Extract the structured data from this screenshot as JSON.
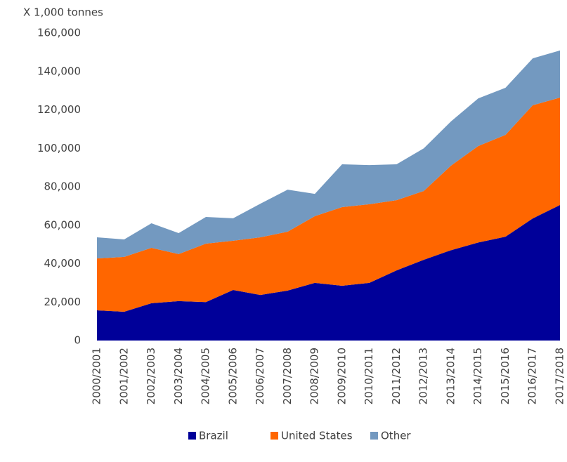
{
  "chart_data": {
    "type": "stacked_area",
    "y_axis_label": "X 1,000 tonnes",
    "categories": [
      "2000/2001",
      "2001/2002",
      "2002/2003",
      "2003/2004",
      "2004/2005",
      "2005/2006",
      "2006/2007",
      "2007/2008",
      "2008/2009",
      "2009/2010",
      "2010/2011",
      "2011/2012",
      "2012/2013",
      "2013/2014",
      "2014/2015",
      "2015/2016",
      "2016/2017",
      "2017/2018"
    ],
    "series": [
      {
        "name": "Brazil",
        "color": "#000099",
        "values": [
          15700,
          15000,
          19400,
          20500,
          20000,
          26300,
          23700,
          26000,
          30000,
          28500,
          30000,
          36500,
          42000,
          47000,
          51000,
          54000,
          63500,
          70500
        ]
      },
      {
        "name": "United States",
        "color": "#ff6600",
        "values": [
          27000,
          28500,
          28800,
          24500,
          30400,
          25600,
          30000,
          30600,
          34700,
          40900,
          40900,
          36500,
          35800,
          44000,
          50200,
          53000,
          58900,
          55900
        ]
      },
      {
        "name": "Other",
        "color": "#7399c0",
        "values": [
          11000,
          9100,
          12800,
          10900,
          13900,
          11700,
          17500,
          21900,
          11600,
          22300,
          20400,
          18700,
          22200,
          23000,
          24800,
          24500,
          24400,
          24500
        ]
      }
    ],
    "ylim": [
      0,
      160000
    ],
    "yticks": [
      0,
      {
        "value": 20000,
        "label": "20,000"
      },
      {
        "value": 40000,
        "label": "40,000"
      },
      {
        "value": 60000,
        "label": "60,000"
      },
      {
        "value": 80000,
        "label": "80,000"
      },
      {
        "value": 100000,
        "label": "100,000"
      },
      {
        "value": 120000,
        "label": "120,000"
      },
      {
        "value": 140000,
        "label": "140,000"
      },
      {
        "value": 160000,
        "label": "160,000"
      }
    ],
    "legend": "bottom"
  }
}
